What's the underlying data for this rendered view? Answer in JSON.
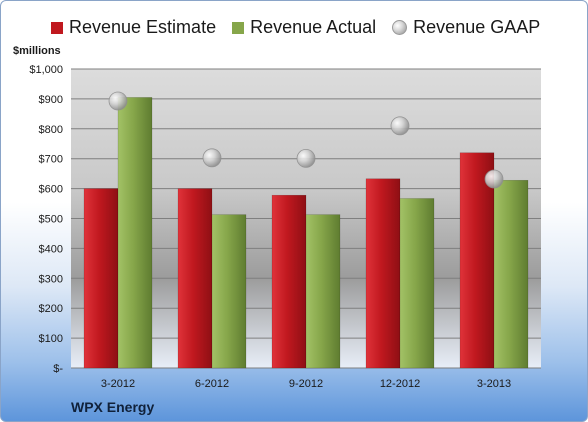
{
  "company": "WPX Energy",
  "unit_label": "$millions",
  "chart_data": {
    "type": "bar",
    "categories": [
      "3-2012",
      "6-2012",
      "9-2012",
      "12-2012",
      "3-2013"
    ],
    "series": [
      {
        "name": "Revenue Estimate",
        "type": "bar",
        "color": "#c0181f",
        "values": [
          600,
          600,
          578,
          633,
          720
        ]
      },
      {
        "name": "Revenue Actual",
        "type": "bar",
        "color": "#86a64a",
        "values": [
          905,
          513,
          513,
          567,
          628
        ]
      },
      {
        "name": "Revenue GAAP",
        "type": "marker",
        "color": "#b8b8b8",
        "values": [
          893,
          703,
          701,
          810,
          632
        ]
      }
    ],
    "ylabel": "$millions",
    "ylim": [
      0,
      1000
    ],
    "yticks": [
      0,
      100,
      200,
      300,
      400,
      500,
      600,
      700,
      800,
      900,
      1000
    ],
    "ytick_labels": [
      "$-",
      "$100",
      "$200",
      "$300",
      "$400",
      "$500",
      "$600",
      "$700",
      "$800",
      "$900",
      "$1,000"
    ],
    "grid": true,
    "legend_position": "top"
  }
}
